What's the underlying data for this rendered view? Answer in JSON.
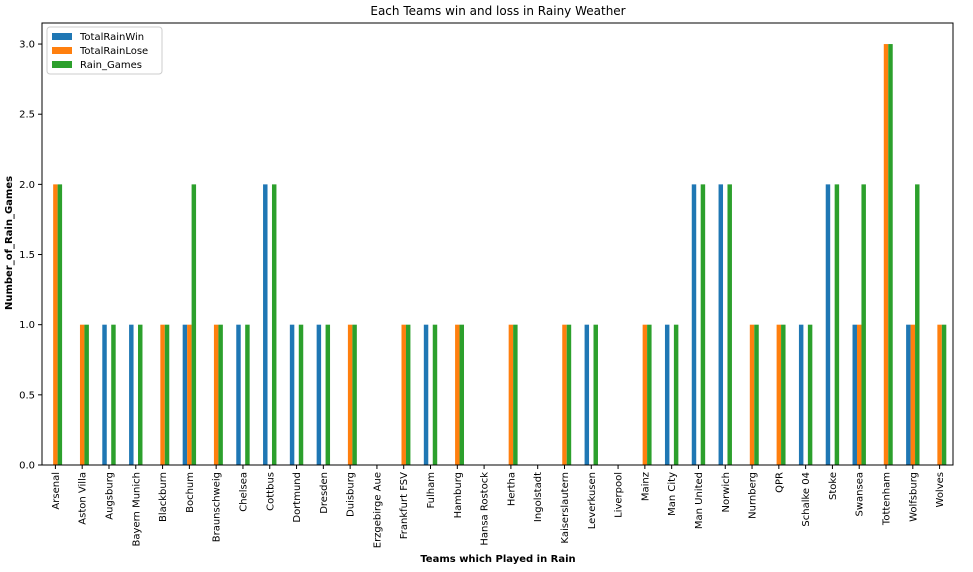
{
  "chart_data": {
    "type": "bar",
    "title": "Each Teams win and loss in Rainy Weather",
    "xlabel": "Teams which Played in Rain",
    "ylabel": "Number_of_Rain_Games",
    "ylim": [
      0,
      3.15
    ],
    "yticks": [
      "0.0",
      "0.5",
      "1.0",
      "1.5",
      "2.0",
      "2.5",
      "3.0"
    ],
    "grid": false,
    "legend_position": "top-left",
    "categories": [
      "Arsenal",
      "Aston Villa",
      "Augsburg",
      "Bayern Munich",
      "Blackburn",
      "Bochum",
      "Braunschweig",
      "Chelsea",
      "Cottbus",
      "Dortmund",
      "Dresden",
      "Duisburg",
      "Erzgebirge Aue",
      "Frankfurt FSV",
      "Fulham",
      "Hamburg",
      "Hansa Rostock",
      "Hertha",
      "Ingolstadt",
      "Kaiserslautern",
      "Leverkusen",
      "Liverpool",
      "Mainz",
      "Man City",
      "Man United",
      "Norwich",
      "Nurnberg",
      "QPR",
      "Schalke 04",
      "Stoke",
      "Swansea",
      "Tottenham",
      "Wolfsburg",
      "Wolves"
    ],
    "series": [
      {
        "name": "TotalRainWin",
        "color": "#1f77b4",
        "values": [
          0,
          0,
          1,
          1,
          0,
          1,
          0,
          1,
          2,
          1,
          1,
          0,
          0,
          0,
          1,
          0,
          0,
          0,
          0,
          0,
          1,
          0,
          0,
          1,
          2,
          2,
          0,
          0,
          1,
          2,
          1,
          0,
          1,
          0
        ]
      },
      {
        "name": "TotalRainLose",
        "color": "#ff7f0e",
        "values": [
          2,
          1,
          0,
          0,
          1,
          1,
          1,
          0,
          0,
          0,
          0,
          1,
          0,
          1,
          0,
          1,
          0,
          1,
          0,
          1,
          0,
          0,
          1,
          0,
          0,
          0,
          1,
          1,
          0,
          0,
          1,
          3,
          1,
          1
        ]
      },
      {
        "name": "Rain_Games",
        "color": "#2ca02c",
        "values": [
          2,
          1,
          1,
          1,
          1,
          2,
          1,
          1,
          2,
          1,
          1,
          1,
          0,
          1,
          1,
          1,
          0,
          1,
          0,
          1,
          1,
          0,
          1,
          1,
          2,
          2,
          1,
          1,
          1,
          2,
          2,
          3,
          2,
          1
        ]
      }
    ]
  }
}
